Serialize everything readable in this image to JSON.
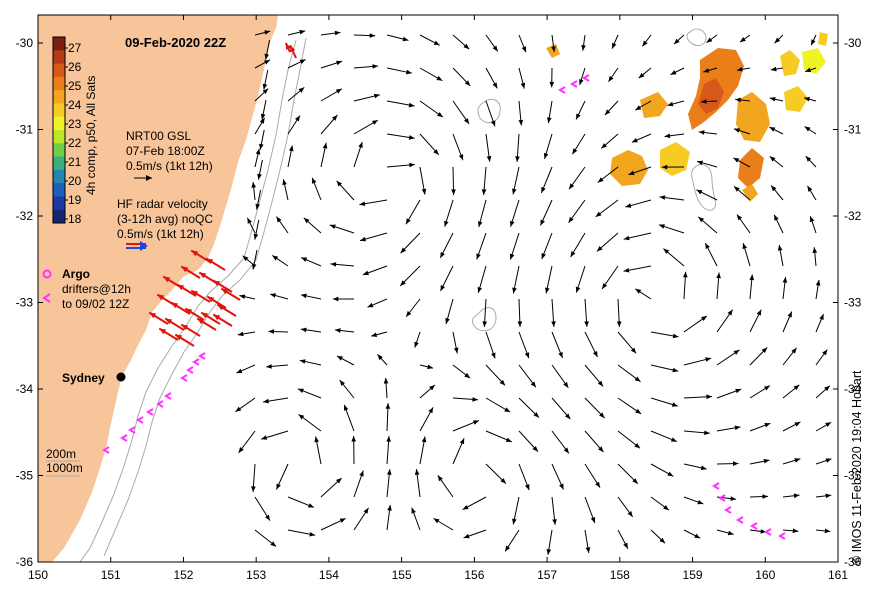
{
  "title": "09-Feb-2020 22Z",
  "credit": "© IMOS 11-Feb-2020 19:04 Hobart",
  "axes": {
    "x_ticks": [
      "150",
      "151",
      "152",
      "153",
      "154",
      "155",
      "156",
      "157",
      "158",
      "159",
      "160",
      "161"
    ],
    "y_ticks": [
      "-30",
      "-31",
      "-32",
      "-33",
      "-34",
      "-35",
      "-36"
    ]
  },
  "colorbar": {
    "label": "4h comp, p50, All Sats",
    "ticks": [
      "27",
      "26",
      "25",
      "24",
      "23",
      "22",
      "21",
      "20",
      "19",
      "18"
    ],
    "colors": [
      "#7a1f10",
      "#b23a16",
      "#d8581a",
      "#ea7f19",
      "#f2a51f",
      "#f6cc24",
      "#eff227",
      "#bde52b",
      "#6fcf4a",
      "#37b07d",
      "#2486b0",
      "#1d5fbf",
      "#1a3aa8",
      "#152572"
    ]
  },
  "legend": {
    "gsl_title": "NRT00 GSL",
    "gsl_time": "07-Feb 18:00Z",
    "gsl_scale": "0.5m/s (1kt 12h)",
    "hf_title": "HF radar velocity",
    "hf_avg": "(3-12h avg) noQC",
    "hf_scale": "0.5m/s (1kt 12h)",
    "argo": "Argo",
    "drifters": "drifters@12h",
    "drifters_to": "to 09/02 12Z",
    "depth_200": "200m",
    "depth_1000": "1000m"
  },
  "place_labels": {
    "city": "Sydney"
  },
  "colors": {
    "land": "#f8c49a",
    "hf_radar": "#e0140c",
    "drifter": "#ff33ff",
    "arrow": "#000000",
    "bathy": "#aaaaaa"
  }
}
